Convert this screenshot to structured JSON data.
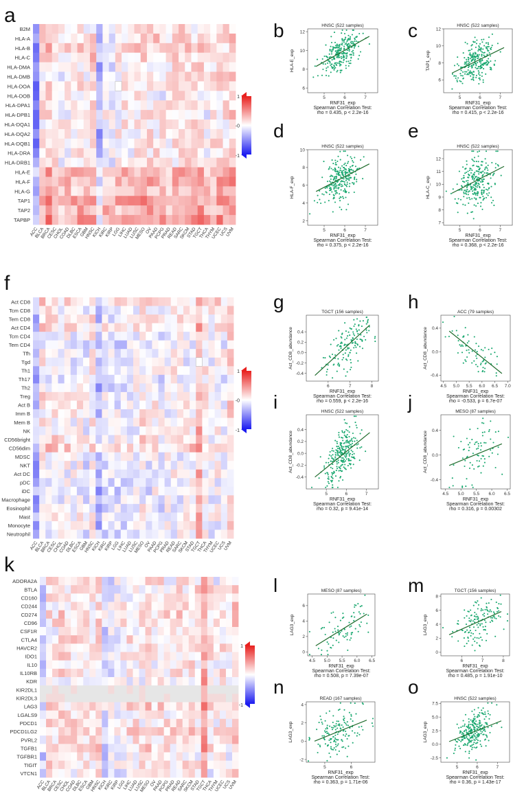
{
  "figure": {
    "panel_letters": [
      "a",
      "b",
      "c",
      "d",
      "e",
      "f",
      "g",
      "h",
      "i",
      "j",
      "k",
      "l",
      "m",
      "n",
      "o"
    ]
  },
  "colors": {
    "scatter_point": "#1aa870",
    "regression_line": "#1f6b2c",
    "heat_pos": "#e8201e",
    "heat_neg": "#1c1cf0",
    "heat_missing": "#e6e6e6"
  },
  "chart_data": [
    {
      "panel": "a",
      "type": "heatmap",
      "rows": [
        "B2M",
        "HLA-A",
        "HLA-B",
        "HLA-C",
        "HLA-DMA",
        "HLA-DMB",
        "HLA-DOA",
        "HLA-DOB",
        "HLA-DPA1",
        "HLA-DPB1",
        "HLA-DQA1",
        "HLA-DQA2",
        "HLA-DQB1",
        "HLA-DRA",
        "HLA-DRB1",
        "HLA-E",
        "HLA-F",
        "HLA-G",
        "TAP1",
        "TAP2",
        "TAPBP"
      ],
      "columns": [
        "ACC",
        "BLCA",
        "BRCA",
        "CESC",
        "CHOL",
        "COAD",
        "DLBC",
        "ESCA",
        "GBM",
        "HNSC",
        "KICH",
        "KIRC",
        "KIRP",
        "LGG",
        "LIHC",
        "LUAD",
        "LUSC",
        "MESO",
        "OV",
        "PAAD",
        "PCPG",
        "PRAD",
        "READ",
        "SARC",
        "SKCM",
        "STAD",
        "TGCT",
        "THCA",
        "THYM",
        "UCEC",
        "UCS",
        "UVM"
      ],
      "col_bias": [
        -0.55,
        0.15,
        0.25,
        0.2,
        0.05,
        0.1,
        0.1,
        0.15,
        0.05,
        0.2,
        -0.35,
        0.05,
        -0.05,
        0.1,
        0.1,
        0.1,
        0.15,
        0.25,
        0.15,
        0.15,
        0.1,
        0.1,
        0.15,
        0.2,
        0.2,
        0.15,
        0.2,
        0.05,
        0.15,
        0.2,
        0.15,
        0.25
      ],
      "row_bias": [
        -0.05,
        0.05,
        0.05,
        0.05,
        -0.05,
        -0.05,
        -0.05,
        -0.1,
        -0.05,
        -0.05,
        -0.05,
        -0.05,
        -0.05,
        -0.05,
        -0.05,
        0.2,
        0.25,
        0.15,
        0.3,
        0.25,
        0.35
      ],
      "missing": [
        [
          6,
          13
        ]
      ],
      "legend_ticks": [
        "1",
        "-0",
        "-1"
      ]
    },
    {
      "panel": "f",
      "type": "heatmap",
      "rows": [
        "Act CD8",
        "Tcm CD8",
        "Tem CD8",
        "Act CD4",
        "Tcm CD4",
        "Tem CD4",
        "Tfh",
        "Tgd",
        "Th1",
        "Th17",
        "Th2",
        "Treg",
        "Act B",
        "Imm B",
        "Mem B",
        "NK",
        "CD56bright",
        "CD56dim",
        "MDSC",
        "NKT",
        "Act DC",
        "pDC",
        "iDC",
        "Macrophage",
        "Eosinophil",
        "Mast",
        "Monocyte",
        "Neutrophil"
      ],
      "columns": [
        "ACC",
        "BLCA",
        "BRCA",
        "CESC",
        "CHOL",
        "COAD",
        "DLBC",
        "ESCA",
        "GBM",
        "HNSC",
        "KICH",
        "KIRC",
        "KIRP",
        "LGG",
        "LIHC",
        "LUAD",
        "LUSC",
        "MESO",
        "OV",
        "PAAD",
        "PCPG",
        "PRAD",
        "READ",
        "SARC",
        "SKCM",
        "STAD",
        "TGCT",
        "THCA",
        "THYM",
        "UCEC",
        "UCS",
        "UVM"
      ],
      "col_bias": [
        -0.35,
        0.1,
        0.05,
        0.1,
        0.0,
        0.05,
        0.0,
        0.05,
        -0.05,
        0.1,
        -0.3,
        -0.05,
        -0.1,
        -0.05,
        -0.05,
        0.0,
        0.0,
        0.1,
        0.0,
        0.05,
        -0.05,
        0.0,
        0.05,
        0.0,
        0.0,
        0.05,
        0.4,
        0.05,
        0.0,
        0.05,
        0.0,
        0.2
      ],
      "row_bias": [
        0.1,
        0.0,
        0.05,
        0.1,
        -0.05,
        -0.1,
        0.0,
        -0.05,
        0.0,
        -0.05,
        -0.05,
        0.0,
        0.0,
        0.0,
        0.0,
        0.0,
        0.05,
        0.2,
        -0.05,
        -0.05,
        -0.05,
        -0.05,
        -0.1,
        -0.1,
        -0.05,
        0.05,
        -0.05,
        -0.05
      ],
      "missing": [
        [
          7,
          26
        ]
      ],
      "legend_ticks": [
        "1",
        "-0",
        "-1"
      ]
    },
    {
      "panel": "k",
      "type": "heatmap",
      "rows": [
        "ADORA2A",
        "BTLA",
        "CD160",
        "CD244",
        "CD274",
        "CD96",
        "CSF1R",
        "CTLA4",
        "HAVCR2",
        "IDO1",
        "IL10",
        "IL10RB",
        "KDR",
        "KIR2DL1",
        "KIR2DL3",
        "LAG3",
        "LGALS9",
        "PDCD1",
        "PDCD1LG2",
        "PVRL2",
        "TGFB1",
        "TGFBR1",
        "TIGIT",
        "VTCN1"
      ],
      "columns": [
        "ACC",
        "BLCA",
        "BRCA",
        "CESC",
        "CHOL",
        "COAD",
        "DLBC",
        "ESCA",
        "GBM",
        "HNSC",
        "KICH",
        "KIRC",
        "KIRP",
        "LGG",
        "LIHC",
        "LUAD",
        "LUSC",
        "MESO",
        "OV",
        "PAAD",
        "PCPG",
        "PRAD",
        "READ",
        "SARC",
        "SKCM",
        "STAD",
        "TGCT",
        "THCA",
        "THYM",
        "UCEC",
        "UCS",
        "UVM"
      ],
      "col_bias": [
        -0.2,
        0.1,
        0.05,
        0.15,
        0.05,
        0.1,
        0.05,
        0.1,
        0.05,
        0.15,
        -0.2,
        -0.1,
        -0.05,
        0.0,
        0.05,
        0.05,
        0.05,
        0.15,
        0.05,
        0.1,
        0.05,
        0.05,
        0.1,
        0.05,
        0.1,
        0.1,
        0.45,
        0.05,
        0.0,
        0.1,
        0.05,
        0.2
      ],
      "row_bias": [
        0.0,
        0.05,
        0.0,
        0.05,
        0.1,
        0.05,
        0.0,
        0.05,
        0.05,
        0.05,
        0.0,
        0.0,
        -0.05,
        -0.3,
        -0.3,
        0.1,
        0.05,
        0.05,
        0.1,
        0.05,
        0.05,
        -0.05,
        0.05,
        -0.05
      ],
      "missing_rows": [
        13,
        14
      ],
      "legend_ticks": [
        "1",
        "-1"
      ]
    },
    {
      "panel": "b",
      "type": "scatter",
      "title": "HNSC (522 samples)",
      "xlabel": "RNF31_exp",
      "ylabel": "HLA-E_exp",
      "xlim": [
        4.2,
        7.6
      ],
      "ylim": [
        5.5,
        12.3
      ],
      "xticks": [
        5,
        6,
        7
      ],
      "yticks": [
        6,
        8,
        10,
        12
      ],
      "n": 260,
      "x_mean": 5.8,
      "x_sd": 0.45,
      "fit": [
        8.3,
        11.5
      ],
      "resid_sd": 0.95,
      "test": "Spearman Correlation Test:",
      "stat": "rho = 0.435, p < 2.2e-16"
    },
    {
      "panel": "c",
      "type": "scatter",
      "title": "HNSC (522 samples)",
      "xlabel": "RNF31_exp",
      "ylabel": "TAP1_exp",
      "xlim": [
        4.2,
        7.6
      ],
      "ylim": [
        4.5,
        12.0
      ],
      "xticks": [
        5,
        6,
        7
      ],
      "yticks": [
        6,
        8,
        10,
        12
      ],
      "n": 260,
      "x_mean": 5.8,
      "x_sd": 0.45,
      "fit": [
        6.8,
        9.8
      ],
      "resid_sd": 1.1,
      "test": "Spearman Correlation Test:",
      "stat": "rho = 0.415, p < 2.2e-16"
    },
    {
      "panel": "d",
      "type": "scatter",
      "title": "HNSC (522 samples)",
      "xlabel": "RNF31_exp",
      "ylabel": "HLA-F_exp",
      "xlim": [
        4.2,
        7.6
      ],
      "ylim": [
        1.5,
        10.0
      ],
      "xticks": [
        5,
        6,
        7
      ],
      "yticks": [
        2,
        4,
        6,
        8,
        10
      ],
      "n": 260,
      "x_mean": 5.8,
      "x_sd": 0.45,
      "fit": [
        5.3,
        8.4
      ],
      "resid_sd": 1.3,
      "test": "Spearman Correlation Test:",
      "stat": "rho = 0.375, p < 2.2e-16"
    },
    {
      "panel": "e",
      "type": "scatter",
      "title": "HNSC (522 samples)",
      "xlabel": "RNF31_exp",
      "ylabel": "HLA-C_exp",
      "xlim": [
        4.2,
        7.6
      ],
      "ylim": [
        6.8,
        12.7
      ],
      "xticks": [
        5,
        6,
        7
      ],
      "yticks": [
        7,
        8,
        9,
        10,
        11,
        12
      ],
      "n": 260,
      "x_mean": 5.8,
      "x_sd": 0.45,
      "fit": [
        9.3,
        11.4
      ],
      "resid_sd": 1.0,
      "test": "Spearman Correlation Test:",
      "stat": "rho = 0.368, p < 2.2e-16"
    },
    {
      "panel": "g",
      "type": "scatter",
      "title": "TGCT (156 samples)",
      "xlabel": "RNF31_exp",
      "ylabel": "Act_CD8_abundance",
      "xlim": [
        5.0,
        8.3
      ],
      "ylim": [
        -0.55,
        0.72
      ],
      "xticks": [
        6,
        7,
        8
      ],
      "yticks": [
        -0.4,
        -0.2,
        0.0,
        0.2,
        0.4
      ],
      "n": 140,
      "x_mean": 6.9,
      "x_sd": 0.55,
      "fit": [
        -0.44,
        0.53
      ],
      "resid_sd": 0.22,
      "test": "Spearman Correlation Test:",
      "stat": "rho = 0.559, p < 2.2e-16"
    },
    {
      "panel": "h",
      "type": "scatter",
      "title": "ACC (79 samples)",
      "xlabel": "RNF31_exp",
      "ylabel": "Act_CD8_abundance",
      "xlim": [
        4.4,
        7.1
      ],
      "ylim": [
        -0.5,
        0.62
      ],
      "xticks": [
        4.5,
        5.0,
        5.5,
        6.0,
        6.5,
        7.0
      ],
      "yticks": [
        -0.4,
        0.0,
        0.4
      ],
      "n": 70,
      "x_mean": 5.7,
      "x_sd": 0.5,
      "fit": [
        0.35,
        -0.37
      ],
      "resid_sd": 0.18,
      "test": "Spearman Correlation Test:",
      "stat": "rho = -0.533, p = 6.7e-07"
    },
    {
      "panel": "i",
      "type": "scatter",
      "title": "HNSC (522 samples)",
      "xlabel": "RNF31_exp",
      "ylabel": "Act_CD8_abundance",
      "xlim": [
        4.0,
        7.6
      ],
      "ylim": [
        -0.6,
        0.65
      ],
      "xticks": [
        5,
        6,
        7
      ],
      "yticks": [
        -0.4,
        -0.2,
        0.0,
        0.2,
        0.4
      ],
      "n": 260,
      "x_mean": 5.8,
      "x_sd": 0.45,
      "fit": [
        -0.4,
        0.35
      ],
      "resid_sd": 0.22,
      "test": "Spearman Correlation Test:",
      "stat": "rho = 0.32, p = 9.41e-14"
    },
    {
      "panel": "j",
      "type": "scatter",
      "title": "MESO (87 samples)",
      "xlabel": "RNF31_exp",
      "ylabel": "Act_CD8_abundance",
      "xlim": [
        4.35,
        6.6
      ],
      "ylim": [
        -0.55,
        0.65
      ],
      "xticks": [
        4.5,
        5.0,
        5.5,
        6.0,
        6.5
      ],
      "yticks": [
        -0.4,
        0.0,
        0.4
      ],
      "n": 80,
      "x_mean": 5.5,
      "x_sd": 0.45,
      "fit": [
        -0.17,
        0.18
      ],
      "resid_sd": 0.28,
      "test": "Spearman Correlation Test:",
      "stat": "rho = 0.316, p = 0.00302"
    },
    {
      "panel": "l",
      "type": "scatter",
      "title": "MESO (87 samples)",
      "xlabel": "RNF31_exp",
      "ylabel": "LAG3_exp",
      "xlim": [
        4.35,
        6.6
      ],
      "ylim": [
        -0.5,
        7.5
      ],
      "xticks": [
        4.5,
        5.0,
        5.5,
        6.0,
        6.5
      ],
      "yticks": [
        0,
        2,
        4,
        6
      ],
      "n": 80,
      "x_mean": 5.5,
      "x_sd": 0.45,
      "fit": [
        0.8,
        4.9
      ],
      "resid_sd": 1.3,
      "test": "Spearman Correlation Test:",
      "stat": "rho = 0.508, p = 7.39e-07"
    },
    {
      "panel": "m",
      "type": "scatter",
      "title": "TGCT (156 samples)",
      "xlabel": "RNF31_exp",
      "ylabel": "LAG3_exp",
      "xlim": [
        5.0,
        8.3
      ],
      "ylim": [
        -0.5,
        8.3
      ],
      "xticks": [
        6,
        7,
        8
      ],
      "yticks": [
        0,
        2,
        4,
        6,
        8
      ],
      "n": 140,
      "x_mean": 6.9,
      "x_sd": 0.55,
      "fit": [
        2.5,
        5.8
      ],
      "resid_sd": 1.4,
      "test": "Spearman Correlation Test:",
      "stat": "rho = 0.485, p = 1.91e-10"
    },
    {
      "panel": "n",
      "type": "scatter",
      "title": "READ (167 samples)",
      "xlabel": "RNF31_exp",
      "ylabel": "LAG3_exp",
      "xlim": [
        4.3,
        6.9
      ],
      "ylim": [
        -2.3,
        4.3
      ],
      "xticks": [
        5,
        6
      ],
      "yticks": [
        -2,
        0,
        2,
        4
      ],
      "n": 150,
      "x_mean": 5.5,
      "x_sd": 0.45,
      "fit": [
        0.0,
        2.3
      ],
      "resid_sd": 1.3,
      "test": "Spearman Correlation Test:",
      "stat": "rho = 0.363, p = 1.71e-06"
    },
    {
      "panel": "o",
      "type": "scatter",
      "title": "HNSC (522 samples)",
      "xlabel": "RNF31_exp",
      "ylabel": "LAG3_exp",
      "xlim": [
        4.2,
        7.6
      ],
      "ylim": [
        -3.3,
        7.8
      ],
      "xticks": [
        5,
        6,
        7
      ],
      "yticks": [
        -2.5,
        0.0,
        2.5,
        5.0,
        7.5
      ],
      "n": 260,
      "x_mean": 5.8,
      "x_sd": 0.45,
      "fit": [
        0.5,
        4.3
      ],
      "resid_sd": 1.7,
      "test": "Spearman Correlation Test:",
      "stat": "rho = 0.36, p = 1.43e-17"
    }
  ]
}
